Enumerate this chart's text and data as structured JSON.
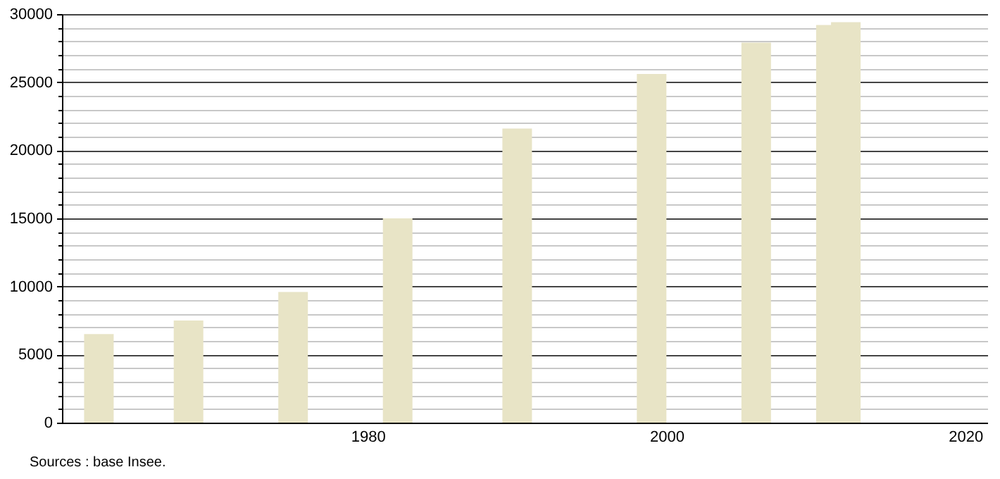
{
  "chart_data": {
    "type": "bar",
    "x": [
      1962,
      1968,
      1975,
      1982,
      1990,
      1999,
      2006,
      2011,
      2012
    ],
    "values": [
      6500,
      7500,
      9600,
      15000,
      21600,
      25600,
      27900,
      29200,
      29400
    ],
    "color": "#e8e4c6",
    "xlim": [
      1960,
      2021
    ],
    "xticks": [
      1980,
      2000,
      2020
    ],
    "ylim": [
      0,
      30000
    ],
    "yticks": [
      0,
      {
        "value": 1000,
        "label": null
      },
      {
        "value": 2000,
        "label": null
      },
      {
        "value": 3000,
        "label": null
      },
      {
        "value": 4000,
        "label": null
      },
      5000,
      {
        "value": 6000,
        "label": null
      },
      {
        "value": 7000,
        "label": null
      },
      {
        "value": 8000,
        "label": null
      },
      {
        "value": 9000,
        "label": null
      },
      10000,
      {
        "value": 11000,
        "label": null
      },
      {
        "value": 12000,
        "label": null
      },
      {
        "value": 13000,
        "label": null
      },
      {
        "value": 14000,
        "label": null
      },
      15000,
      {
        "value": 16000,
        "label": null
      },
      {
        "value": 17000,
        "label": null
      },
      {
        "value": 18000,
        "label": null
      },
      {
        "value": 19000,
        "label": null
      },
      20000,
      {
        "value": 21000,
        "label": null
      },
      {
        "value": 22000,
        "label": null
      },
      {
        "value": 23000,
        "label": null
      },
      {
        "value": 24000,
        "label": null
      },
      25000,
      {
        "value": 26000,
        "label": null
      },
      {
        "value": 27000,
        "label": null
      },
      {
        "value": 28000,
        "label": null
      },
      {
        "value": 29000,
        "label": null
      },
      30000
    ],
    "grid": "y",
    "annotations": [
      "Sources : base Insee."
    ]
  }
}
